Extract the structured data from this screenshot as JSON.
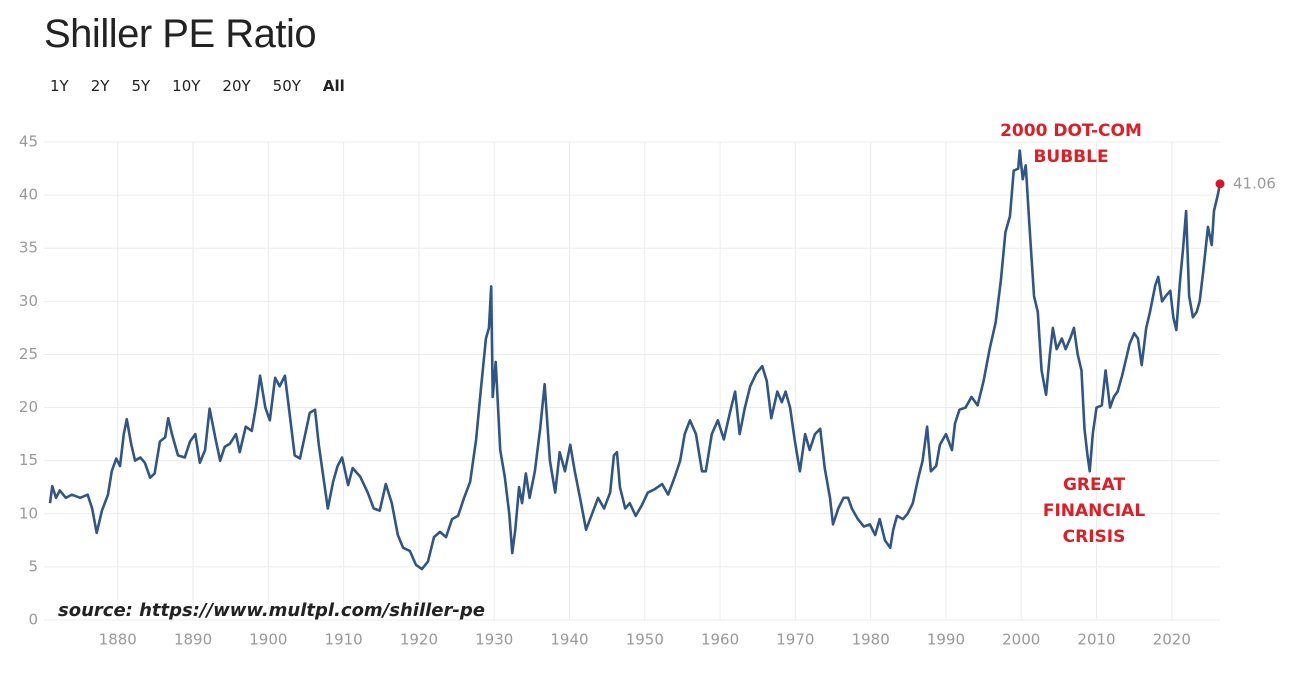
{
  "header": {
    "title": "Shiller PE Ratio",
    "range_buttons": [
      "1Y",
      "2Y",
      "5Y",
      "10Y",
      "20Y",
      "50Y",
      "All"
    ],
    "active_range": "All"
  },
  "chart_data": {
    "type": "line",
    "x": [
      1871.0,
      1871.3,
      1871.8,
      1872.3,
      1873.1,
      1873.9,
      1875.0,
      1876.0,
      1876.6,
      1877.2,
      1877.9,
      1878.7,
      1879.2,
      1879.8,
      1880.3,
      1880.8,
      1881.2,
      1881.8,
      1882.3,
      1883.0,
      1883.6,
      1884.3,
      1884.9,
      1885.6,
      1886.3,
      1886.7,
      1887.2,
      1888.0,
      1888.9,
      1889.6,
      1890.3,
      1890.9,
      1891.6,
      1892.2,
      1893.0,
      1893.6,
      1894.2,
      1894.9,
      1895.7,
      1896.2,
      1897.0,
      1897.8,
      1898.4,
      1898.9,
      1899.6,
      1900.2,
      1900.9,
      1901.5,
      1902.2,
      1902.9,
      1903.5,
      1904.2,
      1904.9,
      1905.5,
      1906.2,
      1906.7,
      1907.4,
      1907.9,
      1908.6,
      1909.2,
      1909.8,
      1910.6,
      1911.2,
      1912.2,
      1913.2,
      1914.0,
      1914.8,
      1915.6,
      1916.4,
      1917.2,
      1917.9,
      1918.8,
      1919.6,
      1920.4,
      1921.2,
      1922.0,
      1922.8,
      1923.6,
      1924.4,
      1925.2,
      1926.0,
      1926.8,
      1927.6,
      1928.2,
      1928.9,
      1929.3,
      1929.6,
      1929.8,
      1930.2,
      1930.8,
      1931.4,
      1932.0,
      1932.4,
      1932.8,
      1933.3,
      1933.7,
      1934.2,
      1934.7,
      1935.4,
      1936.1,
      1936.7,
      1937.4,
      1938.1,
      1938.7,
      1939.4,
      1940.1,
      1940.7,
      1941.4,
      1942.2,
      1943.0,
      1943.8,
      1944.6,
      1945.4,
      1945.9,
      1946.3,
      1946.7,
      1947.4,
      1948.0,
      1948.8,
      1949.6,
      1950.4,
      1951.3,
      1952.3,
      1953.1,
      1954.0,
      1954.7,
      1955.3,
      1956.0,
      1956.8,
      1957.6,
      1958.1,
      1958.9,
      1959.7,
      1960.5,
      1961.3,
      1962.0,
      1962.6,
      1963.3,
      1964.0,
      1964.8,
      1965.6,
      1966.2,
      1966.8,
      1967.6,
      1968.2,
      1968.7,
      1969.3,
      1969.9,
      1970.6,
      1971.3,
      1971.9,
      1972.6,
      1973.3,
      1973.9,
      1974.6,
      1975.0,
      1975.7,
      1976.4,
      1977.0,
      1977.5,
      1978.3,
      1979.1,
      1979.9,
      1980.6,
      1981.2,
      1981.9,
      1982.6,
      1983.0,
      1983.5,
      1984.3,
      1984.9,
      1985.6,
      1986.3,
      1986.9,
      1987.5,
      1988.0,
      1988.7,
      1989.2,
      1990.0,
      1990.8,
      1991.2,
      1991.8,
      1992.6,
      1993.4,
      1994.2,
      1995.0,
      1995.8,
      1996.6,
      1997.3,
      1997.9,
      1998.5,
      1999.0,
      1999.6,
      1999.8,
      2000.2,
      2000.6,
      2001.1,
      2001.7,
      2002.2,
      2002.7,
      2003.3,
      2003.8,
      2004.2,
      2004.7,
      2005.4,
      2005.9,
      2006.5,
      2007.0,
      2007.5,
      2008.0,
      2008.4,
      2008.8,
      2009.1,
      2009.5,
      2010.0,
      2010.7,
      2011.2,
      2011.8,
      2012.3,
      2012.8,
      2013.4,
      2013.9,
      2014.4,
      2015.0,
      2015.5,
      2016.0,
      2016.6,
      2017.1,
      2017.8,
      2018.2,
      2018.7,
      2019.2,
      2019.8,
      2020.2,
      2020.6,
      2021.1,
      2021.5,
      2021.9,
      2022.3,
      2022.8,
      2023.3,
      2023.7,
      2024.2,
      2024.8,
      2025.3,
      2025.6,
      2026.1,
      2026.4
    ],
    "series": [
      {
        "color": "#2f5686",
        "values": [
          11,
          12.6,
          11.5,
          12.2,
          11.5,
          11.8,
          11.5,
          11.8,
          10.5,
          8.2,
          10.3,
          11.8,
          14,
          15.2,
          14.5,
          17.5,
          18.9,
          16.5,
          15,
          15.3,
          14.8,
          13.4,
          13.8,
          16.8,
          17.2,
          19,
          17.5,
          15.5,
          15.3,
          16.8,
          17.5,
          14.8,
          16,
          19.9,
          17,
          15,
          16.3,
          16.6,
          17.5,
          15.8,
          18.2,
          17.8,
          20.3,
          23,
          20,
          18.8,
          22.8,
          22,
          23,
          19,
          15.5,
          15.2,
          17.5,
          19.5,
          19.8,
          16.5,
          13,
          10.5,
          13,
          14.5,
          15.3,
          12.7,
          14.3,
          13.5,
          12,
          10.5,
          10.3,
          12.8,
          11,
          8,
          6.8,
          6.5,
          5.2,
          4.8,
          5.5,
          7.8,
          8.3,
          7.8,
          9.5,
          9.8,
          11.5,
          13,
          17,
          21.5,
          26.5,
          27.5,
          31.4,
          21,
          24.3,
          16,
          13.5,
          10,
          6.3,
          8.5,
          12.5,
          11,
          13.8,
          11.5,
          14,
          18,
          22.2,
          15,
          12,
          15.8,
          14,
          16.5,
          14,
          11.5,
          8.5,
          10,
          11.5,
          10.5,
          12,
          15.5,
          15.8,
          12.5,
          10.5,
          11,
          9.8,
          10.8,
          12,
          12.3,
          12.8,
          11.8,
          13.5,
          15,
          17.5,
          18.8,
          17.5,
          14,
          14,
          17.5,
          18.8,
          17,
          19.5,
          21.5,
          17.5,
          20,
          22,
          23.2,
          23.9,
          22.5,
          19,
          21.5,
          20.5,
          21.5,
          20,
          17,
          14,
          17.5,
          16,
          17.5,
          18,
          14.3,
          11.5,
          9,
          10.5,
          11.5,
          11.5,
          10.5,
          9.5,
          8.8,
          9,
          8,
          9.5,
          7.5,
          6.8,
          8.5,
          9.8,
          9.5,
          10,
          11,
          13.3,
          15,
          18.2,
          14,
          14.5,
          16.5,
          17.5,
          16,
          18.5,
          19.8,
          20,
          21,
          20.2,
          22.5,
          25.5,
          28,
          32,
          36.5,
          38,
          42.3,
          42.5,
          44.2,
          41.5,
          42.8,
          37,
          30.5,
          29,
          23.5,
          21.2,
          25,
          27.5,
          25.5,
          26.5,
          25.5,
          26.5,
          27.5,
          25,
          23.5,
          18,
          15.5,
          14,
          17.5,
          20,
          20.2,
          23.5,
          20,
          21,
          21.5,
          23,
          24.5,
          26,
          27,
          26.5,
          24,
          27.5,
          29,
          31.5,
          32.3,
          30,
          30.5,
          31,
          28.5,
          27.3,
          32,
          35,
          38.5,
          30.5,
          28.5,
          29,
          30,
          33,
          37,
          35.3,
          38.5,
          40,
          41.06
        ]
      }
    ],
    "last_point_color": "#e0102a",
    "xlim": [
      1871,
      2026.4
    ],
    "xticks": [
      1880,
      1890,
      1900,
      1910,
      1920,
      1930,
      1940,
      1950,
      1960,
      1970,
      1980,
      1990,
      2000,
      2010,
      2020
    ],
    "ylim": [
      0,
      45
    ],
    "yticks": [
      0,
      5,
      10,
      15,
      20,
      25,
      30,
      35,
      40,
      45
    ],
    "grid": true,
    "annotations": [
      {
        "lines": [
          "2000 DOT-COM",
          "BUBBLE"
        ],
        "color": "#e31b23"
      },
      {
        "lines": [
          "GREAT",
          "FINANCIAL",
          "CRISIS"
        ],
        "color": "#e31b23"
      }
    ],
    "source": "source: https://www.multpl.com/shiller-pe"
  }
}
